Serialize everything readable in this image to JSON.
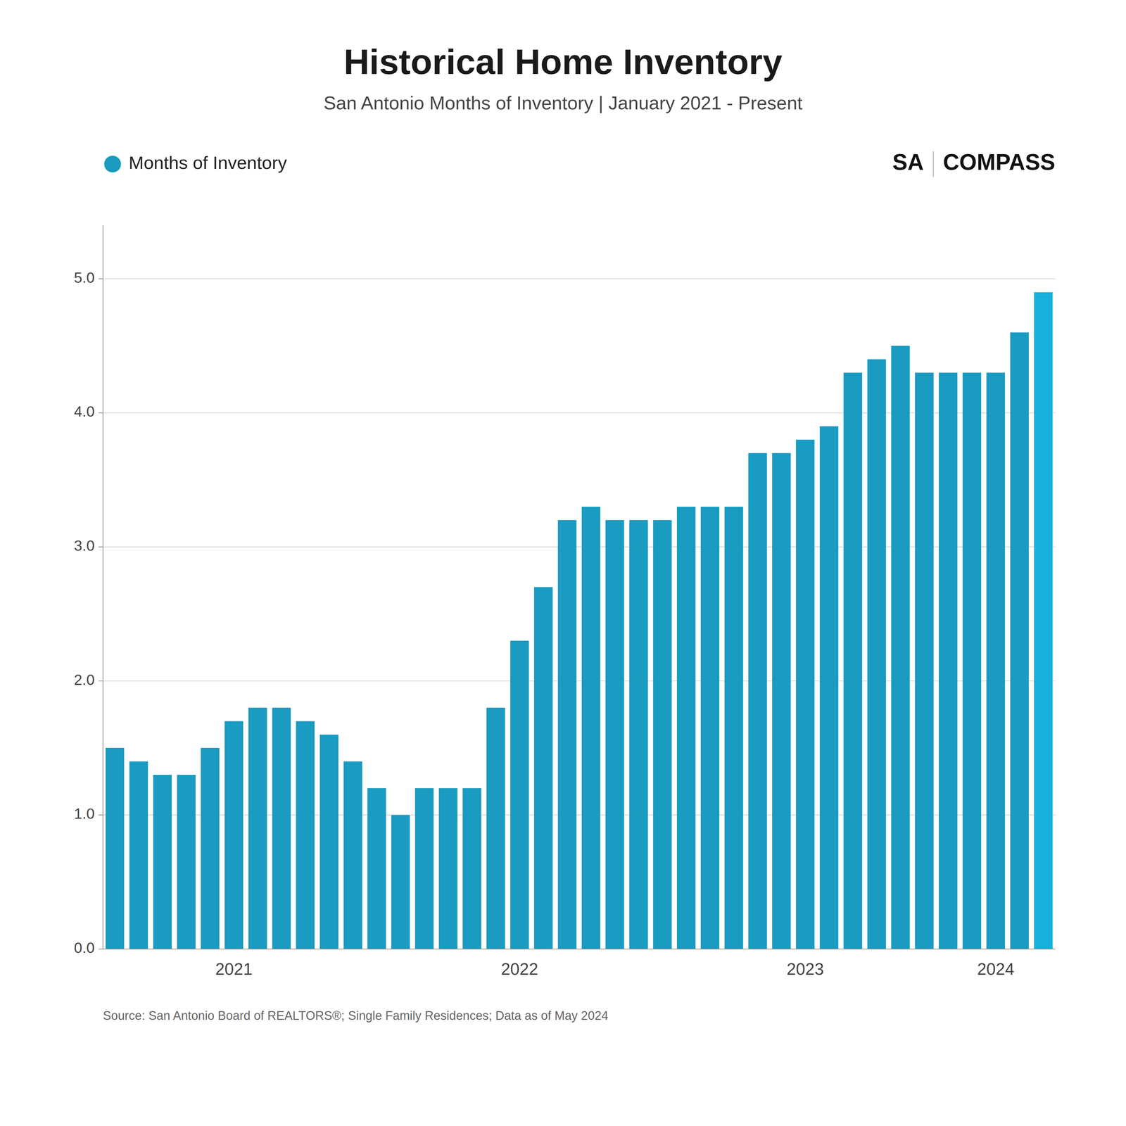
{
  "chart_data": {
    "type": "bar",
    "title": "Historical Home Inventory",
    "subtitle": "San Antonio Months of Inventory | January 2021 - Present",
    "source": "Source: San Antonio Board of REALTORS®; Single Family Residences; Data as of May 2024",
    "annotations": [
      "SA",
      "COMPASS"
    ],
    "categories": [
      null,
      null,
      null,
      null,
      null,
      "2021",
      null,
      null,
      null,
      null,
      null,
      null,
      null,
      null,
      null,
      null,
      null,
      "2022",
      null,
      null,
      null,
      null,
      null,
      null,
      null,
      null,
      null,
      null,
      null,
      "2023",
      null,
      null,
      null,
      null,
      null,
      null,
      null,
      "2024",
      null,
      null
    ],
    "series": [
      {
        "name": "Months of Inventory",
        "color": "#1A9BC1",
        "colors": [
          "#1A9BC1",
          "#1A9BC1",
          "#1A9BC1",
          "#1A9BC1",
          "#1A9BC1",
          "#1A9BC1",
          "#1A9BC1",
          "#1A9BC1",
          "#1A9BC1",
          "#1A9BC1",
          "#1A9BC1",
          "#1A9BC1",
          "#1A9BC1",
          "#1A9BC1",
          "#1A9BC1",
          "#1A9BC1",
          "#1A9BC1",
          "#1A9BC1",
          "#1A9BC1",
          "#1A9BC1",
          "#1A9BC1",
          "#1A9BC1",
          "#1A9BC1",
          "#1A9BC1",
          "#1A9BC1",
          "#1A9BC1",
          "#1A9BC1",
          "#1A9BC1",
          "#1A9BC1",
          "#1A9BC1",
          "#1A9BC1",
          "#1A9BC1",
          "#1A9BC1",
          "#1A9BC1",
          "#1A9BC1",
          "#1A9BC1",
          "#1A9BC1",
          "#1A9BC1",
          "#1A9BC1",
          "#17B0DC"
        ],
        "values": [
          1.5,
          1.4,
          1.3,
          1.3,
          1.5,
          1.7,
          1.8,
          1.8,
          1.7,
          1.6,
          1.4,
          1.2,
          1.0,
          1.2,
          1.2,
          1.2,
          1.8,
          2.3,
          2.7,
          3.2,
          3.3,
          3.2,
          3.2,
          3.2,
          3.3,
          3.3,
          3.3,
          3.7,
          3.7,
          3.8,
          3.9,
          4.3,
          4.4,
          4.5,
          4.3,
          4.3,
          4.3,
          4.3,
          4.6,
          4.9
        ]
      }
    ],
    "ylim": [
      0,
      5.4
    ],
    "yticks": [
      {
        "value": 0.0,
        "label": "0.0"
      },
      {
        "value": 1.0,
        "label": "1.0"
      },
      {
        "value": 2.0,
        "label": "2.0"
      },
      {
        "value": 3.0,
        "label": "3.0"
      },
      {
        "value": 4.0,
        "label": "4.0"
      },
      {
        "value": 5.0,
        "label": "5.0"
      }
    ],
    "grid": true,
    "legend": "top-left"
  }
}
